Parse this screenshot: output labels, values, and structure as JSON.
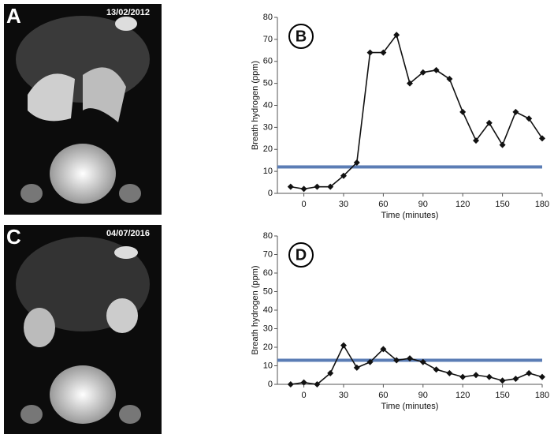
{
  "images": [
    {
      "label": "A",
      "date": "13/02/2012"
    },
    {
      "label": "C",
      "date": "04/07/2016"
    }
  ],
  "chart_data": [
    {
      "type": "line",
      "label": "B",
      "y_label": "Breath hydrogen (ppm)",
      "x_label": "Time (minutes)",
      "x": [
        -10,
        0,
        10,
        20,
        30,
        40,
        50,
        60,
        70,
        80,
        90,
        100,
        110,
        120,
        130,
        140,
        150,
        160,
        170,
        180
      ],
      "series": [
        {
          "color": "#111111",
          "values": [
            3,
            2,
            3,
            3,
            8,
            14,
            64,
            64,
            72,
            50,
            55,
            56,
            52,
            37,
            24,
            32,
            22,
            37,
            34,
            25
          ]
        }
      ],
      "reference_line": {
        "value": 12,
        "color": "#5b7db5"
      },
      "xlim": [
        -20,
        180
      ],
      "xticks": [
        0,
        30,
        60,
        90,
        120,
        150,
        180
      ],
      "ylim": [
        0,
        80
      ],
      "yticks": [
        0,
        10,
        20,
        30,
        40,
        50,
        60,
        70,
        80
      ]
    },
    {
      "type": "line",
      "label": "D",
      "y_label": "Breath hydrogen (ppm)",
      "x_label": "Time (minutes)",
      "x": [
        -10,
        0,
        10,
        20,
        30,
        40,
        50,
        60,
        70,
        80,
        90,
        100,
        110,
        120,
        130,
        140,
        150,
        160,
        170,
        180
      ],
      "series": [
        {
          "color": "#111111",
          "values": [
            0,
            1,
            0,
            6,
            21,
            9,
            12,
            19,
            13,
            14,
            12,
            8,
            6,
            4,
            5,
            4,
            2,
            3,
            6,
            4
          ]
        }
      ],
      "reference_line": {
        "value": 13,
        "color": "#5b7db5"
      },
      "xlim": [
        -20,
        180
      ],
      "xticks": [
        0,
        30,
        60,
        90,
        120,
        150,
        180
      ],
      "ylim": [
        0,
        80
      ],
      "yticks": [
        0,
        10,
        20,
        30,
        40,
        50,
        60,
        70,
        80
      ]
    }
  ]
}
